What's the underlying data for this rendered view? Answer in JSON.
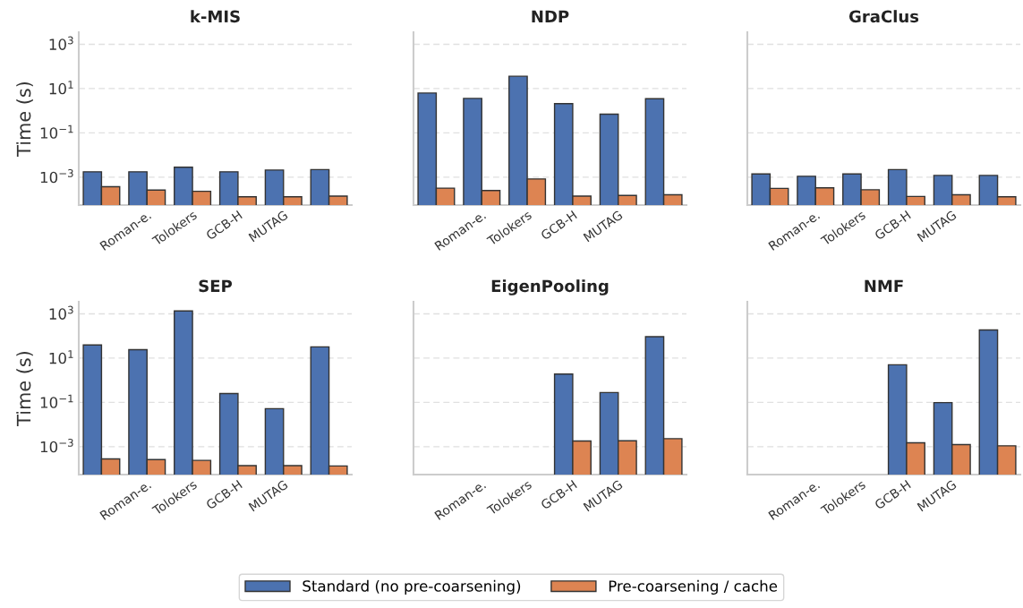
{
  "chart_data": [
    {
      "type": "bar",
      "title": "k-MIS",
      "ylabel": "Time (s)",
      "categories": [
        null,
        "Roman-e.",
        "Tolokers",
        "GCB-H",
        "MUTAG",
        null
      ],
      "log": "y",
      "ylim": [
        5.5e-05,
        3500
      ],
      "yticks": [
        {
          "value": 0.001,
          "label": "10$^{−3}$"
        },
        {
          "value": 0.1,
          "label": "10$^{−1}$"
        },
        {
          "value": 10,
          "label": "10$^{1}$"
        },
        {
          "value": 1000,
          "label": "10$^{3}$"
        }
      ],
      "grid": "y",
      "legend": "bottom",
      "series": [
        {
          "name": "Standard (no pre-coarsening)",
          "color": "#4c72b0",
          "values": [
            0.00175,
            0.00175,
            0.0028,
            0.00175,
            0.0021,
            0.0022
          ]
        },
        {
          "name": "Pre-coarsening / cache",
          "color": "#dd8452",
          "values": [
            0.00037,
            0.00026,
            0.00023,
            0.00013,
            0.00013,
            0.00014
          ]
        }
      ]
    },
    {
      "type": "bar",
      "title": "NDP",
      "categories": [
        null,
        "Roman-e.",
        "Tolokers",
        "GCB-H",
        "MUTAG",
        null
      ],
      "log": "y",
      "ylim": [
        5.5e-05,
        3500
      ],
      "yticks": [
        {
          "value": 0.001,
          "label": null
        },
        {
          "value": 0.1,
          "label": null
        },
        {
          "value": 10,
          "label": null
        },
        {
          "value": 1000,
          "label": null
        }
      ],
      "tick_labels": "x",
      "grid": "y",
      "series": [
        {
          "color": "#4c72b0",
          "values": [
            6.3,
            3.6,
            36,
            2.1,
            0.7,
            3.5
          ]
        },
        {
          "color": "#dd8452",
          "values": [
            0.00032,
            0.00025,
            0.00083,
            0.00014,
            0.00015,
            0.00016
          ]
        }
      ]
    },
    {
      "type": "bar",
      "title": "GraClus",
      "categories": [
        null,
        "Roman-e.",
        "Tolokers",
        "GCB-H",
        "MUTAG",
        null
      ],
      "log": "y",
      "ylim": [
        5.5e-05,
        3500
      ],
      "yticks": [
        {
          "value": 0.001,
          "label": null
        },
        {
          "value": 0.1,
          "label": null
        },
        {
          "value": 10,
          "label": null
        },
        {
          "value": 1000,
          "label": null
        }
      ],
      "tick_labels": "x",
      "grid": "y",
      "series": [
        {
          "color": "#4c72b0",
          "values": [
            0.0014,
            0.0011,
            0.0014,
            0.0022,
            0.0012,
            0.0012
          ]
        },
        {
          "color": "#dd8452",
          "values": [
            0.00031,
            0.00033,
            0.00027,
            0.000135,
            0.00016,
            0.00013
          ]
        }
      ]
    },
    {
      "type": "bar",
      "title": "SEP",
      "ylabel": "Time (s)",
      "categories": [
        null,
        "Roman-e.",
        "Tolokers",
        "GCB-H",
        "MUTAG",
        null
      ],
      "log": "y",
      "ylim": [
        5.5e-05,
        3500
      ],
      "yticks": [
        {
          "value": 0.001,
          "label": "10$^{−3}$"
        },
        {
          "value": 0.1,
          "label": "10$^{−1}$"
        },
        {
          "value": 10,
          "label": "10$^{1}$"
        },
        {
          "value": 1000,
          "label": "10$^{3}$"
        }
      ],
      "grid": "y",
      "series": [
        {
          "color": "#4c72b0",
          "values": [
            39,
            24,
            1350,
            0.25,
            0.052,
            32
          ]
        },
        {
          "color": "#dd8452",
          "values": [
            0.00028,
            0.00026,
            0.00024,
            0.00014,
            0.00014,
            0.000135
          ]
        }
      ]
    },
    {
      "type": "bar",
      "title": "EigenPooling",
      "categories": [
        null,
        "Roman-e.",
        "Tolokers",
        "GCB-H",
        "MUTAG",
        null
      ],
      "log": "y",
      "ylim": [
        5.5e-05,
        3500
      ],
      "yticks": [
        {
          "value": 0.001,
          "label": null
        },
        {
          "value": 0.1,
          "label": null
        },
        {
          "value": 10,
          "label": null
        },
        {
          "value": 1000,
          "label": null
        }
      ],
      "tick_labels": "x",
      "grid": "y",
      "series": [
        {
          "color": "#4c72b0",
          "values": [
            null,
            null,
            null,
            1.9,
            0.28,
            93
          ]
        },
        {
          "color": "#dd8452",
          "values": [
            null,
            null,
            null,
            0.0018,
            0.00185,
            0.0023
          ]
        }
      ]
    },
    {
      "type": "bar",
      "title": "NMF",
      "categories": [
        null,
        "Roman-e.",
        "Tolokers",
        "GCB-H",
        "MUTAG",
        null
      ],
      "log": "y",
      "ylim": [
        5.5e-05,
        3500
      ],
      "yticks": [
        {
          "value": 0.001,
          "label": null
        },
        {
          "value": 0.1,
          "label": null
        },
        {
          "value": 10,
          "label": null
        },
        {
          "value": 1000,
          "label": null
        }
      ],
      "tick_labels": "x",
      "grid": "y",
      "series": [
        {
          "color": "#4c72b0",
          "values": [
            null,
            null,
            null,
            5.0,
            0.098,
            186
          ]
        },
        {
          "color": "#dd8452",
          "values": [
            null,
            null,
            null,
            0.0015,
            0.00125,
            0.0011
          ]
        }
      ]
    }
  ]
}
